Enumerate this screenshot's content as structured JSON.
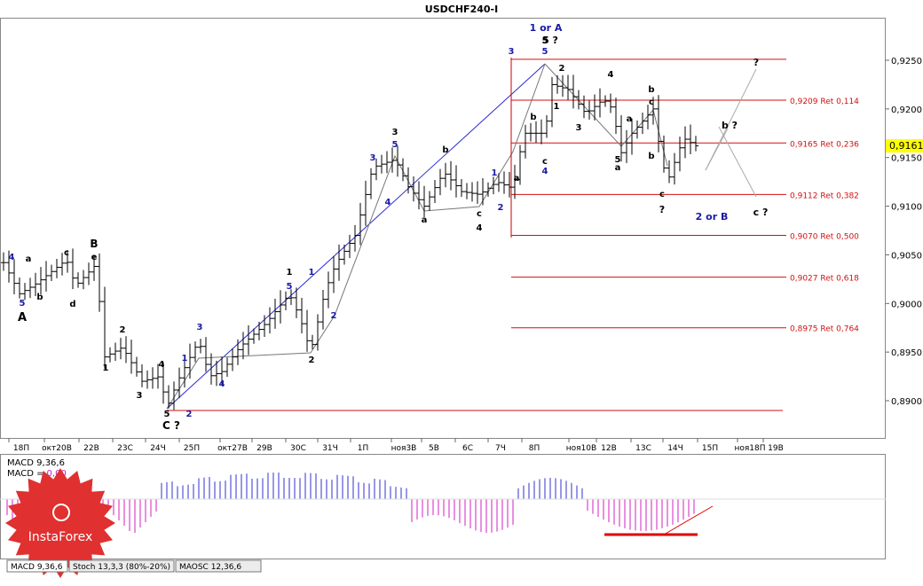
{
  "chart_data": {
    "type": "candlestick",
    "title": "USDCHF240-I",
    "price_axis": {
      "ticks": [
        "0,9250",
        "0,9200",
        "0,9150",
        "0,9100",
        "0,9050",
        "0,9000",
        "0,8950",
        "0,8900"
      ],
      "current_price": "0,9161",
      "range": [
        0.8855,
        0.9295
      ]
    },
    "time_axis": {
      "ticks": [
        "18П",
        "окт20В",
        "22В",
        "23С",
        "24Ч",
        "25П",
        "окт27В",
        "29В",
        "30С",
        "31Ч",
        "1П",
        "ноя3В",
        "5В",
        "6С",
        "7Ч",
        "8П",
        "ноя10В",
        "12В",
        "13С",
        "14Ч",
        "15П",
        "ноя18П",
        "19В"
      ]
    },
    "fib_levels": [
      {
        "value": 0.9209,
        "label": "0,9209 Ret 0,114"
      },
      {
        "value": 0.9165,
        "label": "0,9165 Ret 0,236"
      },
      {
        "value": 0.9112,
        "label": "0,9112 Ret 0,382"
      },
      {
        "value": 0.907,
        "label": "0,9070 Ret 0,500"
      },
      {
        "value": 0.9027,
        "label": "0,9027 Ret 0,618"
      },
      {
        "value": 0.8975,
        "label": "0,8975 Ret 0,764"
      }
    ],
    "extremes": {
      "high": 0.9251,
      "low": 0.889
    },
    "wave_labels": [
      {
        "text": "1 or A",
        "color": "#1a1aa8",
        "bold": true
      },
      {
        "text": "2 or B",
        "color": "#1a1aa8",
        "bold": true
      },
      {
        "text": "5 ?",
        "color": "#000000",
        "bold": true
      },
      {
        "text": "?",
        "color": "#000000",
        "bold": true
      },
      {
        "text": "c ?",
        "color": "#000000",
        "bold": true
      },
      {
        "text": "b ?",
        "color": "#000000",
        "bold": true
      },
      {
        "text": "A",
        "color": "#000000",
        "bold": true
      },
      {
        "text": "B",
        "color": "#000000",
        "bold": true
      },
      {
        "text": "C ?",
        "color": "#000000",
        "bold": true
      }
    ],
    "indicator": {
      "name": "MACD 9,36,6",
      "signal_label": "MACD = 0,00"
    },
    "tabs": [
      "MACD 9,36,6",
      "Stoch 13,3,3 (80%-20%)",
      "MAOSC 12,36,6"
    ],
    "watermark": "InstaForex"
  }
}
